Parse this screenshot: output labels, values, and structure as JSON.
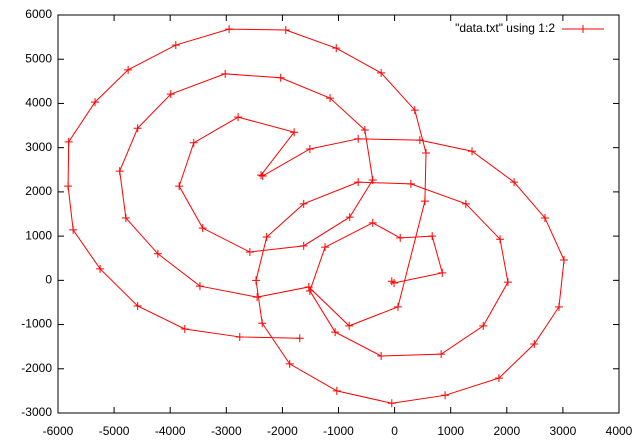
{
  "chart_data": {
    "type": "line",
    "series": [
      {
        "name": "\"data.txt\" using 1:2",
        "color": "#ff0000",
        "x": [
          -50,
          -10,
          850,
          670,
          100,
          -390,
          -1240,
          -1510,
          -1060,
          -240,
          830,
          1580,
          2020,
          1880,
          1270,
          290,
          -650,
          -1620,
          -2280,
          -2470,
          -2360,
          -1870,
          -1030,
          -50,
          900,
          1860,
          2490,
          2930,
          3020,
          2680,
          2130,
          1380,
          450,
          -650,
          -1510,
          -2350,
          -2380,
          -1790,
          -2790,
          -3580,
          -3840,
          -3420,
          -2580,
          -1620,
          -800,
          -390,
          -530,
          -1150,
          -2030,
          -3020,
          -3990,
          -4580,
          -4900,
          -4790,
          -4220,
          -3470,
          -2450,
          -1530,
          -810,
          60,
          540,
          560,
          360,
          -240,
          -1040,
          -1940,
          -2950,
          -3900,
          -4750,
          -5340,
          -5810,
          -5820,
          -5730,
          -5250,
          -4580,
          -3740,
          -2760,
          -1690
        ],
        "values": [
          -20,
          -60,
          170,
          1000,
          960,
          1300,
          750,
          -240,
          -1170,
          -1710,
          -1670,
          -1030,
          -40,
          930,
          1730,
          2180,
          2220,
          1730,
          980,
          0,
          -970,
          -1890,
          -2500,
          -2780,
          -2600,
          -2210,
          -1440,
          -600,
          460,
          1410,
          2220,
          2920,
          3170,
          3200,
          2970,
          2360,
          2380,
          3350,
          3690,
          3110,
          2130,
          1180,
          640,
          780,
          1430,
          2270,
          3400,
          4120,
          4580,
          4670,
          4210,
          3440,
          2470,
          1410,
          600,
          -130,
          -380,
          -150,
          -1030,
          -600,
          1790,
          2880,
          3850,
          4690,
          5250,
          5660,
          5680,
          5320,
          4760,
          4030,
          3130,
          2130,
          1140,
          260,
          -580,
          -1100,
          -1280,
          -1310
        ]
      }
    ],
    "xlim": [
      -6000,
      4000
    ],
    "xticks": [
      -6000,
      -5000,
      -4000,
      -3000,
      -2000,
      -1000,
      0,
      1000,
      2000,
      3000,
      4000
    ],
    "ylim": [
      -3000,
      6000
    ],
    "yticks": [
      -3000,
      -2000,
      -1000,
      0,
      1000,
      2000,
      3000,
      4000,
      5000,
      6000
    ],
    "legend": "top-right",
    "grid": false
  }
}
